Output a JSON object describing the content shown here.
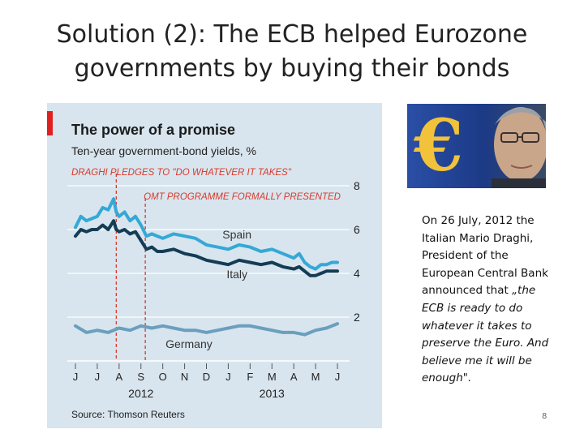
{
  "slide": {
    "title_line1": "Solution (2): The ECB helped Eurozone",
    "title_line2": "governments by buying their bonds",
    "caption_plain": "On 26 July, 2012 the Italian Mario Draghi, President of the European Central Bank announced that",
    "caption_quote": "„the ECB is ready to do whatever it takes to preserve the Euro. And believe me it will be enough\".",
    "page_number": "8"
  },
  "chart_data": {
    "type": "line",
    "title": "The power of a promise",
    "subtitle": "Ten-year government-bond yields, %",
    "source": "Source: Thomson Reuters",
    "ylim": [
      0,
      8
    ],
    "yticks": [
      2,
      4,
      6,
      8
    ],
    "month_labels": [
      "J",
      "J",
      "A",
      "S",
      "O",
      "N",
      "D",
      "J",
      "F",
      "M",
      "A",
      "M",
      "J"
    ],
    "year_labels": [
      {
        "label": "2012",
        "month_index": 3
      },
      {
        "label": "2013",
        "month_index": 9
      }
    ],
    "annotations": [
      {
        "text": "DRAGHI PLEDGES TO \"DO WHATEVER IT TAKES\"",
        "month": 1.87
      },
      {
        "text": "OMT PROGRAMME FORMALLY PRESENTED",
        "month": 3.2
      }
    ],
    "colors": {
      "spain": "#35a8d6",
      "italy": "#143c55",
      "germany": "#6a9fbd",
      "annotation": "#d93a2b",
      "accent": "#e02020"
    },
    "series": [
      {
        "name": "Spain",
        "x": [
          0,
          0.25,
          0.5,
          0.75,
          1.0,
          1.25,
          1.5,
          1.75,
          1.87,
          2.0,
          2.25,
          2.5,
          2.75,
          3.0,
          3.25,
          3.5,
          3.75,
          4.0,
          4.5,
          5.0,
          5.5,
          6.0,
          6.5,
          7.0,
          7.5,
          8.0,
          8.5,
          9.0,
          9.5,
          10.0,
          10.25,
          10.5,
          10.75,
          11.0,
          11.25,
          11.5,
          11.75,
          12.0
        ],
        "values": [
          6.1,
          6.6,
          6.4,
          6.5,
          6.6,
          7.0,
          6.9,
          7.4,
          6.8,
          6.6,
          6.8,
          6.4,
          6.6,
          6.2,
          5.7,
          5.8,
          5.7,
          5.6,
          5.8,
          5.7,
          5.6,
          5.3,
          5.2,
          5.1,
          5.3,
          5.2,
          5.0,
          5.1,
          4.9,
          4.7,
          4.9,
          4.5,
          4.3,
          4.2,
          4.4,
          4.4,
          4.5,
          4.5
        ]
      },
      {
        "name": "Italy",
        "x": [
          0,
          0.25,
          0.5,
          0.75,
          1.0,
          1.25,
          1.5,
          1.75,
          1.87,
          2.0,
          2.25,
          2.5,
          2.75,
          3.0,
          3.25,
          3.5,
          3.75,
          4.0,
          4.5,
          5.0,
          5.5,
          6.0,
          6.5,
          7.0,
          7.5,
          8.0,
          8.5,
          9.0,
          9.5,
          10.0,
          10.25,
          10.5,
          10.75,
          11.0,
          11.25,
          11.5,
          11.75,
          12.0
        ],
        "values": [
          5.7,
          6.0,
          5.9,
          6.0,
          6.0,
          6.2,
          6.0,
          6.4,
          6.0,
          5.9,
          6.0,
          5.8,
          5.9,
          5.5,
          5.1,
          5.2,
          5.0,
          5.0,
          5.1,
          4.9,
          4.8,
          4.6,
          4.5,
          4.4,
          4.6,
          4.5,
          4.4,
          4.5,
          4.3,
          4.2,
          4.3,
          4.1,
          3.9,
          3.9,
          4.0,
          4.1,
          4.1,
          4.1
        ]
      },
      {
        "name": "Germany",
        "x": [
          0,
          0.5,
          1.0,
          1.5,
          2.0,
          2.5,
          3.0,
          3.5,
          4.0,
          4.5,
          5.0,
          5.5,
          6.0,
          6.5,
          7.0,
          7.5,
          8.0,
          8.5,
          9.0,
          9.5,
          10.0,
          10.5,
          11.0,
          11.5,
          12.0
        ],
        "values": [
          1.6,
          1.3,
          1.4,
          1.3,
          1.5,
          1.4,
          1.6,
          1.5,
          1.6,
          1.5,
          1.4,
          1.4,
          1.3,
          1.4,
          1.5,
          1.6,
          1.6,
          1.5,
          1.4,
          1.3,
          1.3,
          1.2,
          1.4,
          1.5,
          1.7
        ]
      }
    ]
  }
}
